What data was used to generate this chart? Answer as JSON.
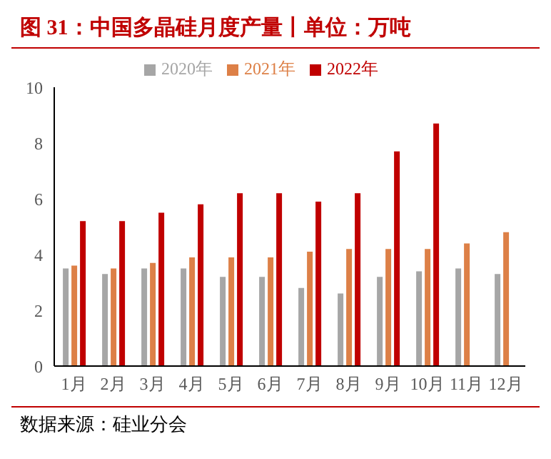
{
  "chart_data": {
    "type": "bar",
    "title": "图 31：中国多晶硅月度产量丨单位：万吨",
    "annotations": [
      "数据来源：硅业分会"
    ],
    "categories": [
      "1月",
      "2月",
      "3月",
      "4月",
      "5月",
      "6月",
      "7月",
      "8月",
      "9月",
      "10月",
      "11月",
      "12月"
    ],
    "series": [
      {
        "name": "2020年",
        "color": "#a6a6a6",
        "values": [
          3.5,
          3.3,
          3.5,
          3.5,
          3.2,
          3.2,
          2.8,
          2.6,
          3.2,
          3.4,
          3.5,
          3.3
        ]
      },
      {
        "name": "2021年",
        "color": "#dd8047",
        "values": [
          3.6,
          3.5,
          3.7,
          3.9,
          3.9,
          3.9,
          4.1,
          4.2,
          4.2,
          4.2,
          4.4,
          4.8
        ]
      },
      {
        "name": "2022年",
        "color": "#c00000",
        "values": [
          5.2,
          5.2,
          5.5,
          5.8,
          6.2,
          6.2,
          5.9,
          6.2,
          7.7,
          8.7,
          null,
          null
        ]
      }
    ],
    "ylim": [
      0,
      10
    ],
    "yticks": [
      0,
      2,
      4,
      6,
      8,
      10
    ],
    "grid": false,
    "legend": "top"
  }
}
